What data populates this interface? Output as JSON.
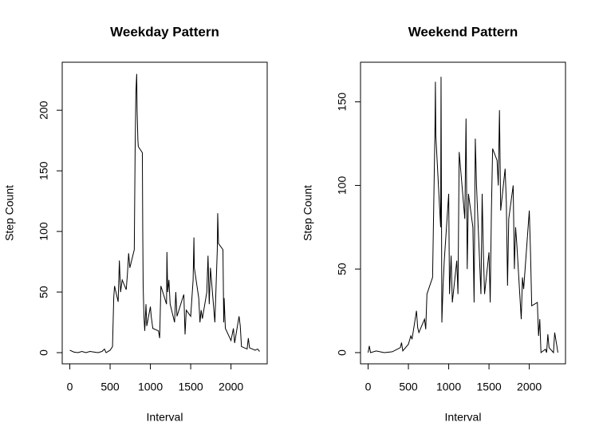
{
  "chart_data": [
    {
      "type": "line",
      "title": "Weekday Pattern",
      "x_label": "Interval",
      "y_label": "Step Count",
      "color": "#000000",
      "xlim": [
        -94.2,
        2449.2
      ],
      "ylim": [
        -9.2,
        239.6
      ],
      "xticks": [
        0,
        500,
        1000,
        1500,
        2000
      ],
      "yticks": [
        0,
        50,
        100,
        150,
        200
      ],
      "x": [
        0,
        50,
        100,
        150,
        200,
        250,
        300,
        350,
        400,
        430,
        450,
        500,
        520,
        530,
        545,
        555,
        600,
        615,
        630,
        650,
        700,
        715,
        730,
        745,
        800,
        810,
        820,
        830,
        835,
        845,
        850,
        900,
        905,
        910,
        920,
        930,
        945,
        955,
        1000,
        1010,
        1030,
        1100,
        1115,
        1130,
        1200,
        1205,
        1215,
        1230,
        1245,
        1300,
        1315,
        1330,
        1400,
        1415,
        1430,
        1445,
        1500,
        1530,
        1540,
        1545,
        1600,
        1615,
        1630,
        1645,
        1700,
        1715,
        1730,
        1745,
        1800,
        1830,
        1835,
        1845,
        1900,
        1910,
        1915,
        1930,
        2000,
        2015,
        2030,
        2045,
        2100,
        2115,
        2130,
        2200,
        2215,
        2230,
        2300,
        2330,
        2355
      ],
      "values": [
        2,
        0.5,
        0,
        1,
        0,
        1,
        0.5,
        0,
        1,
        3,
        0,
        2,
        4,
        5,
        45,
        55,
        42,
        76,
        50,
        60,
        52,
        65,
        82,
        70,
        85,
        165,
        215,
        230,
        200,
        175,
        170,
        165,
        100,
        55,
        30,
        18,
        40,
        22,
        38,
        30,
        20,
        18,
        12,
        55,
        40,
        83,
        50,
        60,
        40,
        25,
        50,
        30,
        45,
        48,
        15,
        35,
        30,
        60,
        95,
        70,
        45,
        25,
        35,
        28,
        50,
        80,
        40,
        70,
        25,
        85,
        115,
        90,
        85,
        25,
        45,
        20,
        10,
        15,
        20,
        8,
        30,
        22,
        5,
        3,
        12,
        4,
        2,
        3,
        1
      ]
    },
    {
      "type": "line",
      "title": "Weekend Pattern",
      "x_label": "Interval",
      "y_label": "Step Count",
      "color": "#000000",
      "xlim": [
        -94.2,
        2449.2
      ],
      "ylim": [
        -6.7,
        173.7
      ],
      "xticks": [
        0,
        500,
        1000,
        1500,
        2000
      ],
      "yticks": [
        0,
        50,
        100,
        150
      ],
      "x": [
        0,
        15,
        30,
        100,
        200,
        300,
        400,
        415,
        430,
        500,
        530,
        545,
        600,
        615,
        630,
        700,
        715,
        730,
        800,
        815,
        830,
        835,
        840,
        900,
        905,
        915,
        930,
        945,
        1000,
        1010,
        1030,
        1045,
        1100,
        1115,
        1130,
        1200,
        1215,
        1230,
        1245,
        1300,
        1315,
        1330,
        1345,
        1400,
        1415,
        1430,
        1445,
        1500,
        1515,
        1530,
        1545,
        1600,
        1615,
        1630,
        1645,
        1700,
        1715,
        1730,
        1745,
        1800,
        1815,
        1830,
        1845,
        1900,
        1915,
        1930,
        2000,
        2015,
        2030,
        2100,
        2115,
        2130,
        2145,
        2200,
        2215,
        2230,
        2245,
        2300,
        2315,
        2355
      ],
      "values": [
        0,
        4,
        0,
        1,
        0,
        0.5,
        3,
        6,
        1,
        5,
        10,
        8,
        25,
        15,
        12,
        20,
        14,
        35,
        45,
        90,
        135,
        162,
        130,
        75,
        165,
        18,
        40,
        55,
        95,
        35,
        58,
        30,
        55,
        35,
        120,
        80,
        140,
        50,
        95,
        75,
        30,
        128,
        100,
        35,
        95,
        60,
        35,
        60,
        30,
        85,
        122,
        115,
        100,
        145,
        85,
        110,
        90,
        40,
        80,
        100,
        50,
        75,
        65,
        20,
        45,
        38,
        85,
        60,
        28,
        30,
        10,
        20,
        0,
        2,
        0,
        11,
        3,
        0,
        12,
        0
      ]
    }
  ]
}
